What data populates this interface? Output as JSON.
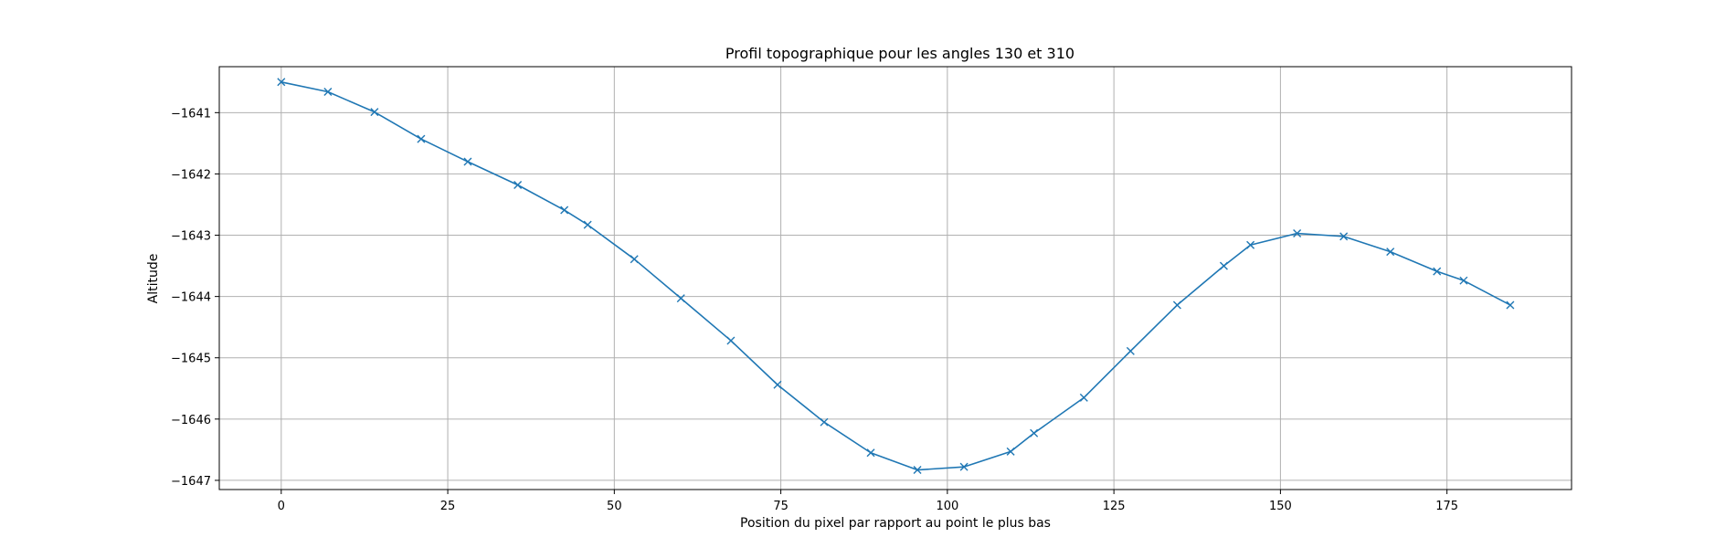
{
  "chart_data": {
    "type": "line",
    "title": "Profil topographique pour les angles 130 et 310",
    "xlabel": "Position du pixel par rapport au point le plus bas",
    "ylabel": "Altitude",
    "xlim": [
      -9.3,
      193.7
    ],
    "ylim": [
      -1647.15,
      -1640.25
    ],
    "xticks": [
      0,
      25,
      50,
      75,
      100,
      125,
      150,
      175
    ],
    "yticks": [
      -1641,
      -1642,
      -1643,
      -1644,
      -1645,
      -1646,
      -1647
    ],
    "grid": true,
    "legend": "none",
    "marker": "x",
    "series": [
      {
        "color": "#1f77b4",
        "x": [
          0,
          7,
          14,
          21,
          28,
          35.5,
          42.5,
          46,
          53,
          60,
          67.5,
          74.5,
          81.5,
          88.5,
          95.5,
          102.5,
          109.5,
          113,
          120.5,
          127.5,
          134.5,
          141.5,
          145.5,
          152.5,
          159.5,
          166.5,
          173.5,
          177.5,
          184.5
        ],
        "y": [
          -1640.5,
          -1640.66,
          -1640.99,
          -1641.43,
          -1641.8,
          -1642.18,
          -1642.59,
          -1642.83,
          -1643.39,
          -1644.03,
          -1644.72,
          -1645.44,
          -1646.05,
          -1646.55,
          -1646.83,
          -1646.78,
          -1646.53,
          -1646.23,
          -1645.65,
          -1644.89,
          -1644.14,
          -1643.5,
          -1643.16,
          -1642.97,
          -1643.02,
          -1643.27,
          -1643.59,
          -1643.74,
          -1644.14
        ]
      }
    ]
  }
}
